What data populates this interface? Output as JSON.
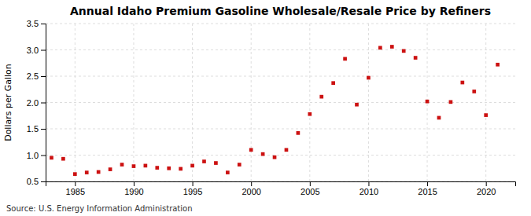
{
  "chart_data": {
    "type": "scatter",
    "title": "Annual Idaho Premium Gasoline Wholesale/Resale Price by Refiners",
    "ylabel": "Dollars per Gallon",
    "source": "Source: U.S. Energy Information Administration",
    "color": "#cc1111",
    "marker": "square",
    "grid": true,
    "xlim": [
      1982.5,
      2022.5
    ],
    "ylim": [
      0.5,
      3.5
    ],
    "xticks": [
      1985,
      1990,
      1995,
      2000,
      2005,
      2010,
      2015,
      2020
    ],
    "yticks": [
      0.5,
      {
        "value": 1,
        "label": "1.0"
      },
      1.5,
      {
        "value": 2,
        "label": "2.0"
      },
      2.5,
      {
        "value": 3,
        "label": "3.0"
      },
      3.5
    ],
    "x": [
      1983,
      1984,
      1985,
      1986,
      1987,
      1988,
      1989,
      1990,
      1991,
      1992,
      1993,
      1994,
      1995,
      1996,
      1997,
      1998,
      1999,
      2000,
      2001,
      2002,
      2003,
      2004,
      2005,
      2006,
      2007,
      2008,
      2009,
      2010,
      2011,
      2012,
      2013,
      2014,
      2015,
      2016,
      2017,
      2018,
      2019,
      2020,
      2021
    ],
    "values": [
      0.95,
      0.93,
      0.64,
      0.67,
      0.68,
      0.73,
      0.82,
      0.79,
      0.8,
      0.76,
      0.75,
      0.74,
      0.8,
      0.88,
      0.85,
      0.67,
      0.82,
      1.1,
      1.02,
      0.96,
      1.1,
      1.42,
      1.78,
      2.11,
      2.37,
      2.83,
      1.96,
      2.47,
      3.04,
      3.06,
      2.98,
      2.85,
      2.02,
      1.71,
      2.01,
      2.38,
      2.21,
      1.76,
      2.72
    ]
  }
}
